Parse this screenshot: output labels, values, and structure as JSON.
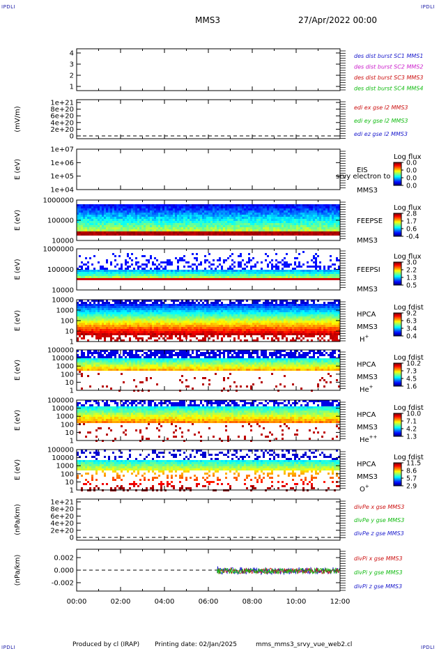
{
  "corner_label": "IPDLI",
  "header": {
    "title": "MMS3",
    "date": "27/Apr/2022 00:00"
  },
  "footer": {
    "produced_by": "Produced by cl (IRAP)",
    "printing_date": "Printing date: 02/Jan/2025",
    "file": "mms_mms3_srvy_vue_web2.cl"
  },
  "time_ticks": [
    "00:00",
    "02:00",
    "04:00",
    "06:00",
    "08:00",
    "10:00",
    "12:00"
  ],
  "chart_data": [
    {
      "id": "p1",
      "type": "line",
      "ylabel": "",
      "yticks": [
        "1",
        "2",
        "3",
        "4"
      ],
      "legend": [
        {
          "text": "des dist burst SC1 MMS1",
          "color": "#1a1acc"
        },
        {
          "text": "des dist burst SC2 MMS2",
          "color": "#cc22cc"
        },
        {
          "text": "des dist burst SC3 MMS3",
          "color": "#cc1111"
        },
        {
          "text": "des dist burst SC4 MMS4",
          "color": "#11bb11"
        }
      ]
    },
    {
      "id": "p2",
      "type": "line",
      "ylabel": "(mV/m)",
      "yticks": [
        "0",
        "2e+20",
        "4e+20",
        "6e+20",
        "8e+20",
        "1e+21"
      ],
      "legend": [
        {
          "text": "edi ex gse l2 MMS3",
          "color": "#cc1111"
        },
        {
          "text": "edi ey gse l2 MMS3",
          "color": "#11bb11"
        },
        {
          "text": "edi ez gse l2 MMS3",
          "color": "#1a1acc"
        }
      ]
    },
    {
      "id": "p3",
      "type": "heatmap",
      "ylabel": "E (eV)",
      "yticks": [
        "1e+04",
        "1e+05",
        "1e+06",
        "1e+07"
      ],
      "instrument": [
        "EIS",
        "MMS3"
      ],
      "overlay_text": "srvy electron to",
      "colorbar": {
        "title": "Log flux",
        "ticks": [
          "0.0",
          "0.0",
          "0.0",
          "0.0"
        ]
      }
    },
    {
      "id": "p4",
      "type": "heatmap",
      "ylabel": "E (eV)",
      "yticks": [
        "10000",
        "100000",
        "1000000"
      ],
      "instrument": [
        "FEEPSE",
        "MMS3"
      ],
      "colorbar": {
        "title": "Log flux",
        "ticks": [
          "2.8",
          "1.7",
          "0.6",
          "-0.4"
        ]
      }
    },
    {
      "id": "p5",
      "type": "heatmap",
      "ylabel": "E (eV)",
      "yticks": [
        "10000",
        "100000",
        "1000000"
      ],
      "instrument": [
        "FEEPSI",
        "MMS3"
      ],
      "colorbar": {
        "title": "Log flux",
        "ticks": [
          "3.0",
          "2.2",
          "1.3",
          "0.5"
        ]
      }
    },
    {
      "id": "p6",
      "type": "heatmap",
      "ylabel": "E (eV)",
      "yticks": [
        "1",
        "10",
        "100",
        "1000",
        "10000"
      ],
      "instrument": [
        "HPCA",
        "MMS3",
        "H+"
      ],
      "colorbar": {
        "title": "Log fdist",
        "ticks": [
          "9.2",
          "6.3",
          "3.4",
          "0.4"
        ]
      }
    },
    {
      "id": "p7",
      "type": "heatmap",
      "ylabel": "E (eV)",
      "yticks": [
        "1",
        "10",
        "100",
        "1000",
        "10000",
        "100000"
      ],
      "instrument": [
        "HPCA",
        "MMS3",
        "He+"
      ],
      "colorbar": {
        "title": "Log fdist",
        "ticks": [
          "10.2",
          "7.3",
          "4.5",
          "1.6"
        ]
      }
    },
    {
      "id": "p8",
      "type": "heatmap",
      "ylabel": "E (eV)",
      "yticks": [
        "1",
        "10",
        "100",
        "1000",
        "10000",
        "100000"
      ],
      "instrument": [
        "HPCA",
        "MMS3",
        "He++"
      ],
      "colorbar": {
        "title": "Log fdist",
        "ticks": [
          "10.0",
          "7.1",
          "4.2",
          "1.3"
        ]
      }
    },
    {
      "id": "p9",
      "type": "heatmap",
      "ylabel": "E (eV)",
      "yticks": [
        "1",
        "10",
        "100",
        "1000",
        "10000",
        "100000"
      ],
      "instrument": [
        "HPCA",
        "MMS3",
        "O+"
      ],
      "colorbar": {
        "title": "Log fdist",
        "ticks": [
          "11.5",
          "8.6",
          "5.7",
          "2.9"
        ]
      }
    },
    {
      "id": "p10",
      "type": "line",
      "ylabel": "(nPa/km)",
      "yticks": [
        "0",
        "2e+20",
        "4e+20",
        "6e+20",
        "8e+20",
        "1e+21"
      ],
      "legend": [
        {
          "text": "divPe x gse MMS3",
          "color": "#cc1111"
        },
        {
          "text": "divPe y gse MMS3",
          "color": "#11bb11"
        },
        {
          "text": "divPe z gse MMS3",
          "color": "#1a1acc"
        }
      ]
    },
    {
      "id": "p11",
      "type": "line",
      "ylabel": "(nPa/km)",
      "yticks": [
        "-0.002",
        "0.000",
        "0.002"
      ],
      "ylim": [
        -0.003,
        0.003
      ],
      "data_start_hour": 6.4,
      "legend": [
        {
          "text": "divPi x gse MMS3",
          "color": "#cc1111"
        },
        {
          "text": "divPi y gse MMS3",
          "color": "#11bb11"
        },
        {
          "text": "divPi z gse MMS3",
          "color": "#1a1acc"
        }
      ]
    }
  ]
}
